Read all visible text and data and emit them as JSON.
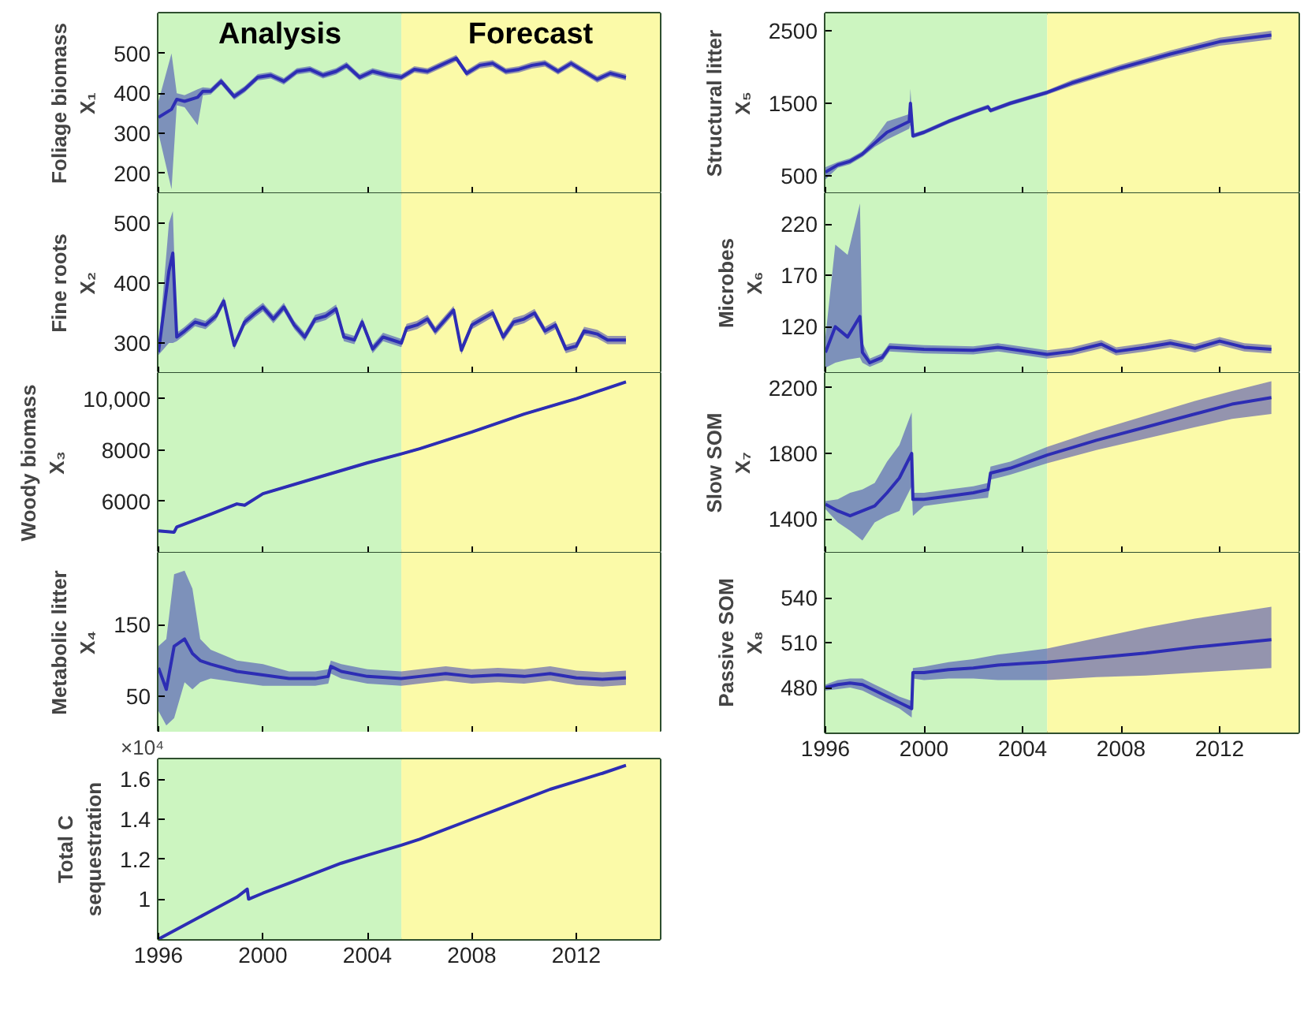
{
  "chart_data": [
    {
      "type": "line",
      "ylabel": "Foliage biomass\nX₁",
      "xlim": [
        1996,
        2015.2
      ],
      "xticks": [
        1996,
        2000,
        2004,
        2008,
        2012
      ],
      "ylim": [
        150,
        600
      ],
      "yticks": [
        200,
        300,
        400,
        500
      ],
      "tick_labels": "y",
      "bands": [
        {
          "axis": "x",
          "from": 1996,
          "to": 2005.3,
          "label": "Analysis",
          "color": "#ccf5c0"
        },
        {
          "axis": "x",
          "from": 2005.3,
          "to": 2015.2,
          "label": "Forecast",
          "color": "#fbfaa8"
        }
      ],
      "x": [
        1996,
        1996.5,
        1996.7,
        1997,
        1997.5,
        1997.7,
        1998,
        1998.4,
        1998.9,
        1999.3,
        1999.8,
        2000.3,
        2000.8,
        2001.3,
        2001.8,
        2002.3,
        2002.8,
        2003.2,
        2003.7,
        2004.2,
        2004.8,
        2005.3,
        2005.8,
        2006.3,
        2006.8,
        2007.4,
        2007.8,
        2008.3,
        2008.8,
        2009.3,
        2009.8,
        2010.3,
        2010.8,
        2011.3,
        2011.8,
        2012.3,
        2012.8,
        2013.3,
        2013.9
      ],
      "series": [
        {
          "color": "#2d2db4",
          "values": [
            340,
            360,
            385,
            380,
            390,
            405,
            405,
            430,
            392,
            410,
            440,
            445,
            430,
            455,
            460,
            445,
            455,
            470,
            440,
            455,
            445,
            440,
            460,
            455,
            470,
            488,
            450,
            470,
            475,
            455,
            460,
            470,
            475,
            455,
            475,
            455,
            435,
            450,
            440
          ],
          "lower": [
            300,
            160,
            370,
            365,
            320,
            395,
            397,
            422,
            384,
            402,
            432,
            437,
            422,
            447,
            452,
            437,
            447,
            462,
            432,
            447,
            437,
            432,
            452,
            447,
            462,
            480,
            442,
            462,
            467,
            447,
            452,
            462,
            467,
            447,
            467,
            447,
            427,
            442,
            432
          ],
          "upper": [
            380,
            500,
            400,
            395,
            410,
            415,
            413,
            438,
            400,
            418,
            448,
            453,
            438,
            463,
            468,
            453,
            463,
            478,
            448,
            463,
            453,
            448,
            468,
            463,
            478,
            496,
            458,
            478,
            483,
            463,
            468,
            478,
            483,
            463,
            483,
            463,
            443,
            458,
            448
          ]
        }
      ]
    },
    {
      "type": "line",
      "ylabel": "Fine roots\nX₂",
      "xlim": [
        1996,
        2015.2
      ],
      "xticks": [
        1996,
        2000,
        2004,
        2008,
        2012
      ],
      "ylim": [
        250,
        550
      ],
      "yticks": [
        300,
        400,
        500
      ],
      "tick_labels": "y",
      "bands": [
        {
          "axis": "x",
          "from": 1996,
          "to": 2005.3,
          "label": null,
          "color": "#ccf5c0"
        },
        {
          "axis": "x",
          "from": 2005.3,
          "to": 2015.2,
          "label": null,
          "color": "#fbfaa8"
        }
      ],
      "x": [
        1996,
        1996.4,
        1996.55,
        1996.7,
        1997,
        1997.4,
        1997.8,
        1998.2,
        1998.5,
        1998.9,
        1999.3,
        1999.7,
        2000,
        2000.4,
        2000.8,
        2001.2,
        2001.6,
        2002,
        2002.4,
        2002.8,
        2003.1,
        2003.5,
        2003.8,
        2004.2,
        2004.6,
        2005.3,
        2005.5,
        2005.9,
        2006.3,
        2006.6,
        2007,
        2007.3,
        2007.6,
        2008,
        2008.4,
        2008.8,
        2009.2,
        2009.6,
        2010,
        2010.4,
        2010.8,
        2011.2,
        2011.6,
        2012,
        2012.3,
        2012.8,
        2013.2,
        2013.9
      ],
      "series": [
        {
          "color": "#2d2db4",
          "values": [
            285,
            420,
            450,
            310,
            320,
            335,
            330,
            345,
            370,
            296,
            335,
            350,
            360,
            340,
            360,
            330,
            310,
            340,
            345,
            357,
            310,
            305,
            335,
            290,
            310,
            300,
            325,
            330,
            340,
            320,
            340,
            355,
            288,
            330,
            340,
            350,
            310,
            335,
            340,
            350,
            320,
            330,
            290,
            295,
            320,
            315,
            305,
            305
          ],
          "lower": [
            280,
            300,
            300,
            303,
            313,
            328,
            323,
            338,
            363,
            289,
            328,
            343,
            353,
            333,
            353,
            323,
            303,
            333,
            338,
            350,
            303,
            298,
            328,
            283,
            303,
            293,
            318,
            323,
            333,
            313,
            333,
            348,
            281,
            323,
            333,
            343,
            303,
            328,
            333,
            343,
            313,
            323,
            283,
            288,
            313,
            308,
            298,
            298
          ],
          "upper": [
            290,
            500,
            520,
            317,
            327,
            342,
            337,
            352,
            377,
            303,
            342,
            357,
            367,
            347,
            367,
            337,
            317,
            347,
            352,
            364,
            317,
            312,
            342,
            297,
            317,
            307,
            332,
            337,
            347,
            327,
            347,
            362,
            295,
            337,
            347,
            357,
            317,
            342,
            347,
            357,
            327,
            337,
            297,
            302,
            327,
            322,
            312,
            312
          ]
        }
      ]
    },
    {
      "type": "line",
      "ylabel": "Woody biomass\nX₃",
      "xlim": [
        1996,
        2015.2
      ],
      "xticks": [
        1996,
        2000,
        2004,
        2008,
        2012
      ],
      "ylim": [
        4000,
        11000
      ],
      "yticks": [
        6000,
        8000,
        {
          "value": 10000,
          "label": "10,000"
        }
      ],
      "tick_labels": "y",
      "bands": [
        {
          "axis": "x",
          "from": 1996,
          "to": 2005.3,
          "label": null,
          "color": "#ccf5c0"
        },
        {
          "axis": "x",
          "from": 2005.3,
          "to": 2015.2,
          "label": null,
          "color": "#fbfaa8"
        }
      ],
      "x": [
        1996,
        1996.6,
        1996.7,
        1998,
        1999,
        1999.3,
        2000,
        2002,
        2004,
        2005.3,
        2006,
        2008,
        2010,
        2012,
        2013.9
      ],
      "series": [
        {
          "color": "#2d2db4",
          "values": [
            4850,
            4800,
            5000,
            5500,
            5900,
            5850,
            6300,
            6900,
            7500,
            7850,
            8050,
            8700,
            9400,
            10000,
            10650
          ],
          "lower": [
            4800,
            4750,
            4950,
            5450,
            5850,
            5800,
            6250,
            6850,
            7450,
            7800,
            8000,
            8650,
            9350,
            9950,
            10600
          ],
          "upper": [
            4900,
            4850,
            5050,
            5550,
            5950,
            5900,
            6350,
            6950,
            7550,
            7900,
            8100,
            8750,
            9450,
            10050,
            10700
          ]
        }
      ]
    },
    {
      "type": "line",
      "ylabel": "Metabolic litter\nX₄",
      "xlim": [
        1996,
        2015.2
      ],
      "xticks": [
        1996,
        2000,
        2004,
        2008,
        2012
      ],
      "ylim": [
        0,
        250
      ],
      "yticks": [
        50,
        150
      ],
      "tick_labels": "y",
      "bands": [
        {
          "axis": "x",
          "from": 1996,
          "to": 2005.3,
          "label": null,
          "color": "#ccf5c0"
        },
        {
          "axis": "x",
          "from": 2005.3,
          "to": 2015.2,
          "label": null,
          "color": "#fbfaa8"
        }
      ],
      "x": [
        1996,
        1996.3,
        1996.6,
        1997,
        1997.3,
        1997.6,
        1998,
        1999,
        2000,
        2001,
        2002,
        2002.5,
        2002.6,
        2003,
        2004,
        2005.3,
        2006,
        2007,
        2008,
        2009,
        2010,
        2011,
        2012,
        2013,
        2013.9
      ],
      "series": [
        {
          "color": "#2d2db4",
          "values": [
            90,
            60,
            120,
            130,
            110,
            100,
            95,
            85,
            80,
            75,
            75,
            78,
            92,
            85,
            78,
            75,
            78,
            82,
            78,
            80,
            78,
            82,
            76,
            74,
            76
          ],
          "lower": [
            30,
            10,
            20,
            70,
            60,
            70,
            75,
            70,
            65,
            65,
            65,
            68,
            82,
            75,
            68,
            65,
            68,
            72,
            68,
            70,
            68,
            72,
            66,
            64,
            66
          ],
          "upper": [
            120,
            130,
            220,
            225,
            200,
            130,
            115,
            100,
            95,
            85,
            85,
            88,
            100,
            95,
            88,
            85,
            88,
            92,
            88,
            90,
            88,
            92,
            86,
            84,
            86
          ]
        }
      ]
    },
    {
      "type": "line",
      "ylabel": "Total C\nsequestration",
      "annotations": [
        "×10⁴"
      ],
      "xlim": [
        1996,
        2015.2
      ],
      "xticks": [
        1996,
        2000,
        2004,
        2008,
        2012
      ],
      "ylim": [
        0.8,
        1.7
      ],
      "yticks": [
        1,
        1.2,
        1.4,
        1.6
      ],
      "bands": [
        {
          "axis": "x",
          "from": 1996,
          "to": 2005.3,
          "label": null,
          "color": "#ccf5c0"
        },
        {
          "axis": "x",
          "from": 2005.3,
          "to": 2015.2,
          "label": null,
          "color": "#fbfaa8"
        }
      ],
      "x": [
        1996,
        1997,
        1998,
        1999,
        1999.4,
        1999.45,
        2000,
        2001,
        2002,
        2003,
        2004,
        2005.3,
        2006,
        2007,
        2008,
        2009,
        2010,
        2011,
        2012,
        2013,
        2013.9
      ],
      "series": [
        {
          "color": "#2d2db4",
          "values": [
            0.8,
            0.87,
            0.94,
            1.01,
            1.05,
            1.0,
            1.03,
            1.08,
            1.13,
            1.18,
            1.22,
            1.27,
            1.3,
            1.35,
            1.4,
            1.45,
            1.5,
            1.55,
            1.59,
            1.63,
            1.67
          ],
          "lower": [
            0.8,
            0.865,
            0.935,
            1.005,
            1.045,
            0.995,
            1.025,
            1.075,
            1.125,
            1.175,
            1.215,
            1.265,
            1.295,
            1.345,
            1.395,
            1.445,
            1.495,
            1.545,
            1.585,
            1.625,
            1.665
          ],
          "upper": [
            0.805,
            0.875,
            0.945,
            1.015,
            1.055,
            1.005,
            1.035,
            1.085,
            1.135,
            1.185,
            1.225,
            1.275,
            1.305,
            1.355,
            1.405,
            1.455,
            1.505,
            1.555,
            1.595,
            1.635,
            1.675
          ]
        }
      ]
    },
    {
      "type": "line",
      "ylabel": "Structural litter\nX₅",
      "xlim": [
        1996,
        2015.2
      ],
      "xticks": [
        1996,
        2000,
        2004,
        2008,
        2012
      ],
      "ylim": [
        260,
        2740
      ],
      "yticks": [
        500,
        1500,
        2500
      ],
      "tick_labels": "y",
      "bands": [
        {
          "axis": "x",
          "from": 1996,
          "to": 2005.0,
          "label": null,
          "color": "#ccf5c0"
        },
        {
          "axis": "x",
          "from": 2005.0,
          "to": 2015.2,
          "label": null,
          "color": "#fbfaa8"
        }
      ],
      "x": [
        1996,
        1996.5,
        1997,
        1997.5,
        1998,
        1998.5,
        1999.4,
        1999.45,
        1999.55,
        2000,
        2001,
        2002,
        2002.6,
        2002.7,
        2003.5,
        2005,
        2006,
        2008,
        2010,
        2012,
        2014.1
      ],
      "series": [
        {
          "color": "#2d2db4",
          "values": [
            550,
            650,
            700,
            800,
            950,
            1100,
            1250,
            1500,
            1050,
            1100,
            1250,
            1380,
            1450,
            1400,
            1500,
            1650,
            1780,
            1990,
            2180,
            2350,
            2440
          ],
          "lower": [
            450,
            610,
            660,
            760,
            900,
            1000,
            1150,
            1200,
            1020,
            1070,
            1220,
            1350,
            1420,
            1370,
            1470,
            1620,
            1740,
            1945,
            2130,
            2295,
            2380
          ],
          "upper": [
            620,
            690,
            740,
            840,
            1020,
            1250,
            1350,
            1700,
            1080,
            1130,
            1280,
            1410,
            1480,
            1430,
            1530,
            1680,
            1820,
            2035,
            2230,
            2405,
            2500
          ]
        }
      ]
    },
    {
      "type": "line",
      "ylabel": "Microbes\nX₆",
      "xlim": [
        1996,
        2015.2
      ],
      "xticks": [
        1996,
        2000,
        2004,
        2008,
        2012
      ],
      "ylim": [
        75,
        250
      ],
      "yticks": [
        120,
        170,
        220
      ],
      "tick_labels": "y",
      "bands": [
        {
          "axis": "x",
          "from": 1996,
          "to": 2005.0,
          "label": null,
          "color": "#ccf5c0"
        },
        {
          "axis": "x",
          "from": 2005.0,
          "to": 2015.2,
          "label": null,
          "color": "#fbfaa8"
        }
      ],
      "x": [
        1996,
        1996.4,
        1996.9,
        1997.4,
        1997.5,
        1997.8,
        1998.3,
        1998.6,
        2000,
        2002,
        2003,
        2005,
        2006,
        2007.2,
        2007.8,
        2009,
        2010,
        2011,
        2012,
        2013,
        2014.1
      ],
      "series": [
        {
          "color": "#2d2db4",
          "values": [
            95,
            120,
            110,
            130,
            95,
            85,
            90,
            100,
            98,
            97,
            100,
            93,
            96,
            103,
            96,
            100,
            104,
            99,
            106,
            100,
            98
          ],
          "lower": [
            80,
            85,
            88,
            90,
            85,
            81,
            86,
            96,
            94,
            93,
            96,
            89,
            92,
            99,
            92,
            96,
            100,
            95,
            102,
            96,
            94
          ],
          "upper": [
            110,
            200,
            190,
            240,
            105,
            89,
            94,
            104,
            102,
            101,
            104,
            97,
            100,
            107,
            100,
            104,
            108,
            103,
            110,
            104,
            102
          ]
        }
      ]
    },
    {
      "type": "line",
      "ylabel": "Slow SOM\nX₇",
      "xlim": [
        1996,
        2015.2
      ],
      "xticks": [
        1996,
        2000,
        2004,
        2008,
        2012
      ],
      "ylim": [
        1195,
        2290
      ],
      "yticks": [
        1400,
        1800,
        2200
      ],
      "tick_labels": "y",
      "bands": [
        {
          "axis": "x",
          "from": 1996,
          "to": 2005.0,
          "label": null,
          "color": "#ccf5c0"
        },
        {
          "axis": "x",
          "from": 2005.0,
          "to": 2015.2,
          "label": null,
          "color": "#fbfaa8"
        }
      ],
      "x": [
        1996,
        1996.5,
        1997,
        1997.5,
        1998,
        1998.5,
        1999,
        1999.5,
        1999.55,
        2000,
        2001,
        2002,
        2002.6,
        2002.7,
        2003.5,
        2005,
        2007,
        2009,
        2011,
        2012.5,
        2014.1
      ],
      "series": [
        {
          "color": "#2d2db4",
          "values": [
            1490,
            1450,
            1420,
            1450,
            1480,
            1560,
            1650,
            1800,
            1520,
            1520,
            1540,
            1560,
            1580,
            1680,
            1710,
            1790,
            1880,
            1960,
            2040,
            2100,
            2140
          ],
          "lower": [
            1460,
            1380,
            1330,
            1270,
            1380,
            1420,
            1450,
            1600,
            1420,
            1480,
            1500,
            1520,
            1530,
            1640,
            1670,
            1740,
            1820,
            1890,
            1960,
            2010,
            2040
          ],
          "upper": [
            1510,
            1520,
            1560,
            1580,
            1620,
            1750,
            1850,
            2050,
            1560,
            1560,
            1580,
            1600,
            1620,
            1720,
            1750,
            1840,
            1940,
            2030,
            2120,
            2180,
            2240
          ]
        }
      ]
    },
    {
      "type": "line",
      "ylabel": "Passive SOM\nX₈",
      "xlim": [
        1996,
        2015.2
      ],
      "xticks": [
        1996,
        2000,
        2004,
        2008,
        2012
      ],
      "ylim": [
        450,
        570
      ],
      "yticks": [
        480,
        510,
        540
      ],
      "bands": [
        {
          "axis": "x",
          "from": 1996,
          "to": 2005.0,
          "label": null,
          "color": "#ccf5c0"
        },
        {
          "axis": "x",
          "from": 2005.0,
          "to": 2015.2,
          "label": null,
          "color": "#fbfaa8"
        }
      ],
      "x": [
        1996,
        1996.5,
        1997,
        1997.5,
        1998,
        1998.5,
        1999,
        1999.5,
        1999.55,
        2000,
        2001,
        2002,
        2003,
        2004,
        2005,
        2007,
        2009,
        2011,
        2014.1
      ],
      "series": [
        {
          "color": "#2d2db4",
          "values": [
            480,
            482,
            483,
            482,
            478,
            474,
            470,
            466,
            490,
            490,
            492,
            493,
            495,
            496,
            497,
            500,
            503,
            507,
            512
          ],
          "lower": [
            478,
            479,
            480,
            478,
            474,
            470,
            466,
            460,
            486,
            485,
            486,
            486,
            485,
            485,
            485,
            487,
            488,
            490,
            493
          ],
          "upper": [
            482,
            485,
            486,
            486,
            482,
            478,
            474,
            471,
            493,
            494,
            497,
            499,
            502,
            504,
            506,
            513,
            520,
            526,
            534
          ]
        }
      ]
    }
  ]
}
